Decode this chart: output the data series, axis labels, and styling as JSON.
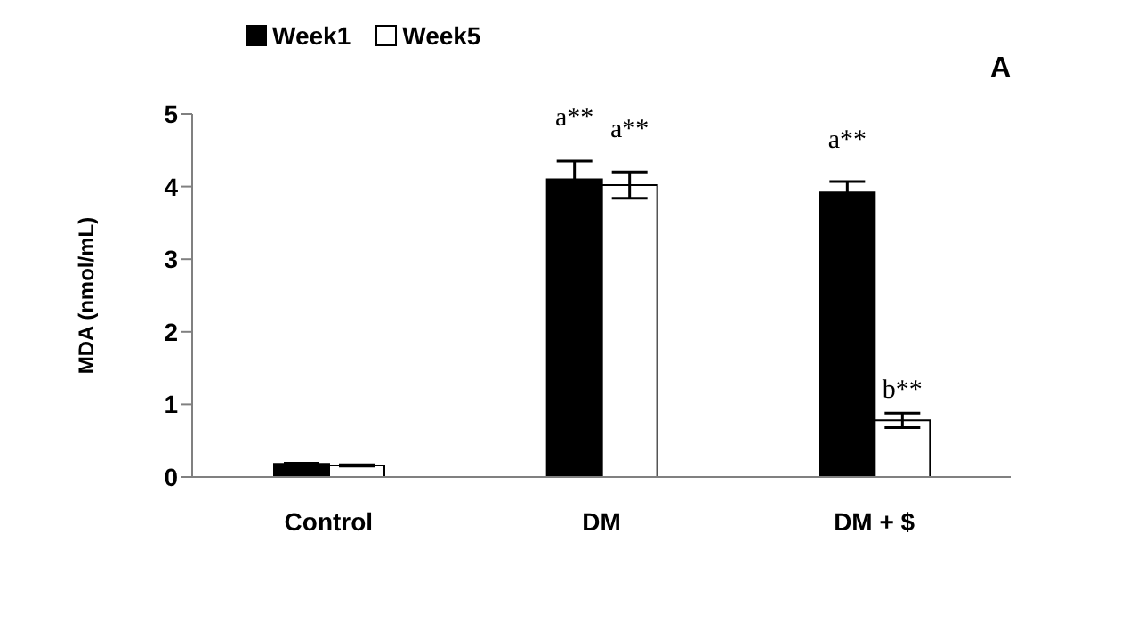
{
  "chart_data": {
    "type": "bar",
    "title": "A",
    "ylabel": "MDA (nmol/mL)",
    "categories": [
      "Control",
      "DM",
      "DM + $"
    ],
    "series": [
      {
        "name": "Week1",
        "color": "#000000",
        "values": [
          0.18,
          4.1,
          3.92
        ],
        "errors": [
          0.01,
          0.25,
          0.15
        ]
      },
      {
        "name": "Week5",
        "color": "#ffffff",
        "values": [
          0.16,
          4.02,
          0.78
        ],
        "errors": [
          0.01,
          0.18,
          0.1
        ]
      }
    ],
    "annotations": [
      {
        "text": "a**",
        "x": "DM",
        "y": 4.1
      },
      {
        "text": "a**",
        "x": "DM",
        "y": 4.02
      },
      {
        "text": "a**",
        "x": "DM + $",
        "y": 3.92
      },
      {
        "text": "b**",
        "x": "DM + $",
        "y": 0.78
      }
    ],
    "ylim": [
      0,
      5
    ],
    "yticks": [
      0,
      1,
      2,
      3,
      4,
      5
    ],
    "grid": false,
    "legend": "top left"
  }
}
